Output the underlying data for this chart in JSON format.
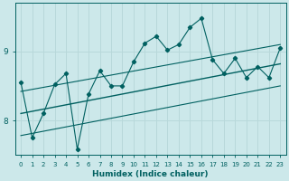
{
  "xlabel": "Humidex (Indice chaleur)",
  "ylabel": "",
  "bg_color": "#cce8ea",
  "grid_color": "#b8d8da",
  "line_color": "#006060",
  "xlim": [
    -0.5,
    23.5
  ],
  "ylim": [
    7.5,
    9.7
  ],
  "yticks": [
    8,
    9
  ],
  "xticks": [
    0,
    1,
    2,
    3,
    4,
    5,
    6,
    7,
    8,
    9,
    10,
    11,
    12,
    13,
    14,
    15,
    16,
    17,
    18,
    19,
    20,
    21,
    22,
    23
  ],
  "data_x": [
    0,
    1,
    2,
    3,
    4,
    5,
    6,
    7,
    8,
    9,
    10,
    11,
    12,
    13,
    14,
    15,
    16,
    17,
    18,
    19,
    20,
    21,
    22,
    23
  ],
  "data_y": [
    8.55,
    7.75,
    8.1,
    8.52,
    8.68,
    7.58,
    8.38,
    8.72,
    8.5,
    8.5,
    8.85,
    9.12,
    9.22,
    9.02,
    9.1,
    9.35,
    9.48,
    8.88,
    8.68,
    8.9,
    8.62,
    8.78,
    8.62,
    9.05
  ],
  "reg_y_start": 8.1,
  "reg_y_end": 8.82,
  "upper_y_start": 8.42,
  "upper_y_end": 9.1,
  "lower_y_start": 7.78,
  "lower_y_end": 8.5
}
